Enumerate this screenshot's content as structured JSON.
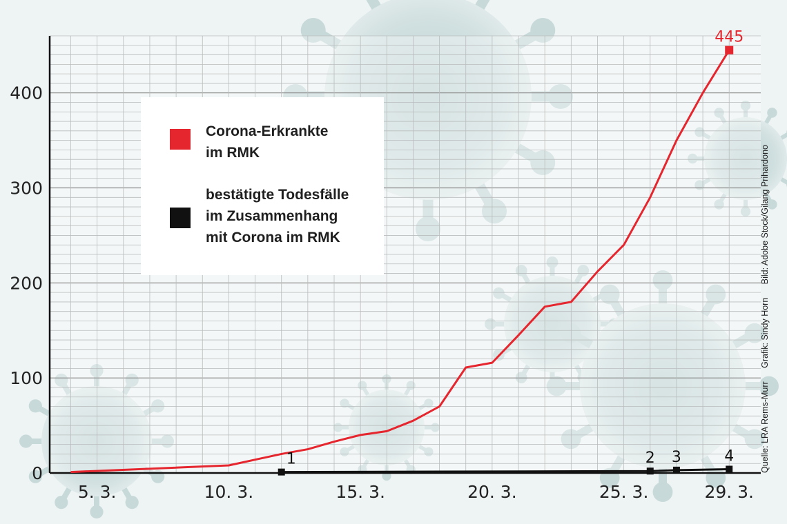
{
  "chart_data": {
    "type": "line",
    "x_unit": "date (March)",
    "yticks": [
      0,
      100,
      200,
      300,
      400
    ],
    "ylim": [
      0,
      460
    ],
    "xlim": [
      3.2,
      30.2
    ],
    "xticks": [
      {
        "value": 5,
        "label": "5. 3."
      },
      {
        "value": 10,
        "label": "10. 3."
      },
      {
        "value": 15,
        "label": "15. 3."
      },
      {
        "value": 20,
        "label": "20. 3."
      },
      {
        "value": 25,
        "label": "25. 3."
      },
      {
        "value": 29,
        "label": "29. 3."
      }
    ],
    "grid": true,
    "legend_position": "upper-left",
    "series": [
      {
        "name": "Corona-Erkrankte im RMK",
        "color": "#e5262e",
        "x": [
          4,
          10,
          12,
          13,
          14,
          15,
          16,
          17,
          18,
          19,
          20,
          21,
          22,
          23,
          24,
          25,
          26,
          27,
          28,
          29
        ],
        "y": [
          1,
          8,
          20,
          25,
          33,
          40,
          44,
          55,
          70,
          111,
          116,
          145,
          175,
          180,
          212,
          240,
          290,
          350,
          400,
          445
        ]
      },
      {
        "name": "bestätigte Todesfälle im Zusammenhang mit Corona im RMK",
        "color": "#111111",
        "x": [
          12,
          26,
          27,
          29
        ],
        "y": [
          1,
          2,
          3,
          4
        ]
      }
    ],
    "annotations": [
      {
        "series": 0,
        "point": 19,
        "label": "445"
      },
      {
        "series": 1,
        "point": 0,
        "label": "1"
      },
      {
        "series": 1,
        "point": 1,
        "label": "2"
      },
      {
        "series": 1,
        "point": 2,
        "label": "3"
      },
      {
        "series": 1,
        "point": 3,
        "label": "4"
      }
    ]
  },
  "legend": {
    "items": [
      {
        "lines": [
          "Corona-Erkrankte",
          "im RMK"
        ],
        "color": "#e5262e"
      },
      {
        "lines": [
          "bestätigte Todesfälle",
          "im Zusammenhang",
          "mit Corona  im RMK"
        ],
        "color": "#111111"
      }
    ]
  },
  "credits": {
    "source": "Quelle: LRA Rems-Murr",
    "graphic": "Grafik: Sindy Horn",
    "image": "Bild: Adobe Stock/Gilang Prihardono"
  },
  "background_decoration": "virus-illustration"
}
